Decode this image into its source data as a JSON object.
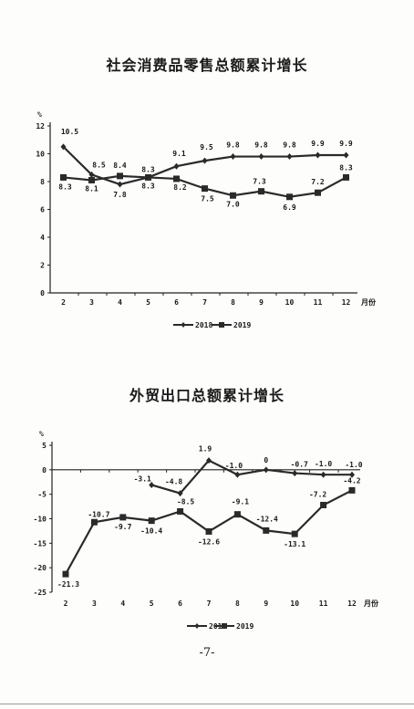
{
  "page_number": "-7-",
  "chart_data": [
    {
      "type": "line",
      "title": "社会消费品零售总额累计增长",
      "ylabel": "%",
      "xlabel": "月份",
      "ylim": [
        0,
        12
      ],
      "yticks": [
        0,
        2,
        4,
        6,
        8,
        10,
        12
      ],
      "categories": [
        "2",
        "3",
        "4",
        "5",
        "6",
        "7",
        "8",
        "9",
        "10",
        "11",
        "12"
      ],
      "legend_position": "bottom",
      "series": [
        {
          "name": "2018",
          "marker": "diamond",
          "values": [
            10.5,
            8.5,
            7.8,
            8.3,
            9.1,
            9.5,
            9.8,
            9.8,
            9.8,
            9.9,
            9.9
          ],
          "labels": [
            "10.5",
            "8.5",
            "7.8",
            "8.3",
            "9.1",
            "9.5",
            "9.8",
            "9.8",
            "9.8",
            "9.9",
            "9.9"
          ]
        },
        {
          "name": "2019",
          "marker": "square",
          "values": [
            8.3,
            8.1,
            8.4,
            8.3,
            8.2,
            7.5,
            7.0,
            7.3,
            6.9,
            7.2,
            8.3
          ],
          "labels": [
            "8.3",
            "8.1",
            "8.4",
            "8.3",
            "8.2",
            "7.5",
            "7.0",
            "7.3",
            "6.9",
            "7.2",
            "8.3"
          ]
        }
      ]
    },
    {
      "type": "line",
      "title": "外贸出口总额累计增长",
      "ylabel": "%",
      "xlabel": "月份",
      "ylim": [
        -25,
        5
      ],
      "yticks": [
        -25,
        -20,
        -15,
        -10,
        -5,
        0,
        5
      ],
      "categories": [
        "2",
        "3",
        "4",
        "5",
        "6",
        "7",
        "8",
        "9",
        "10",
        "11",
        "12"
      ],
      "legend_position": "bottom",
      "series": [
        {
          "name": "2018",
          "marker": "diamond",
          "values": [
            null,
            null,
            null,
            -3.1,
            -4.8,
            1.9,
            -1.0,
            0,
            -0.7,
            -1.0,
            -1.0
          ],
          "labels": [
            null,
            null,
            null,
            "-3.1",
            "-4.8",
            "1.9",
            "-1.0",
            "0",
            "-0.7",
            "-1.0",
            "-1.0"
          ]
        },
        {
          "name": "2019",
          "marker": "square",
          "values": [
            -21.3,
            -10.7,
            -9.7,
            -10.4,
            -8.5,
            -12.6,
            -9.1,
            -12.4,
            -13.1,
            -7.2,
            -4.2
          ],
          "labels": [
            "-21.3",
            "-10.7",
            "-9.7",
            "-10.4",
            "-8.5",
            "-12.6",
            "-9.1",
            "-12.4",
            "-13.1",
            "-7.2",
            "-4.2"
          ]
        }
      ]
    }
  ]
}
